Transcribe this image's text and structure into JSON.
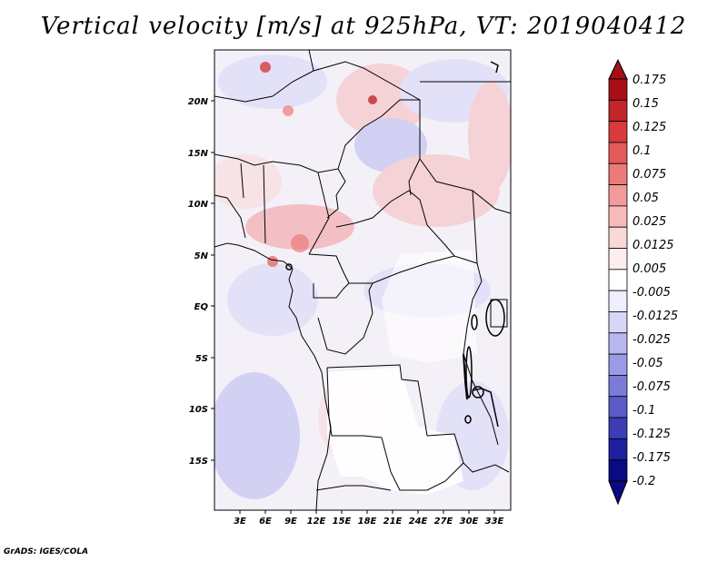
{
  "title": "Vertical velocity [m/s] at 925hPa, VT: 2019040412",
  "credit": "GrADS: IGES/COLA",
  "map": {
    "region": "Central Africa",
    "lon_range": [
      0,
      35
    ],
    "lat_range": [
      -20,
      25
    ],
    "lon_ticks": [
      "3E",
      "6E",
      "9E",
      "12E",
      "15E",
      "18E",
      "21E",
      "24E",
      "27E",
      "30E",
      "33E"
    ],
    "lon_tick_values": [
      3,
      6,
      9,
      12,
      15,
      18,
      21,
      24,
      27,
      30,
      33
    ],
    "lat_ticks": [
      "20N",
      "15N",
      "10N",
      "5N",
      "EQ",
      "5S",
      "10S",
      "15S"
    ],
    "lat_tick_values": [
      20,
      15,
      10,
      5,
      0,
      -5,
      -10,
      -15
    ]
  },
  "colorbar": {
    "labels": [
      "0.175",
      "0.15",
      "0.125",
      "0.1",
      "0.075",
      "0.05",
      "0.025",
      "0.0125",
      "0.005",
      "-0.005",
      "-0.0125",
      "-0.025",
      "-0.05",
      "-0.075",
      "-0.1",
      "-0.125",
      "-0.175",
      "-0.2"
    ],
    "colors": [
      "#a50f15",
      "#c0262a",
      "#d73c3c",
      "#e45a5a",
      "#ec7a7a",
      "#f29a9a",
      "#f7baba",
      "#fbd8d8",
      "#fdeeee",
      "#ffffff",
      "#eeeeff",
      "#d6d6f7",
      "#b8b8ef",
      "#9a9ae6",
      "#7a7ad8",
      "#5a5ac8",
      "#3c3cb4",
      "#1e1ea0",
      "#0a0a82"
    ]
  }
}
